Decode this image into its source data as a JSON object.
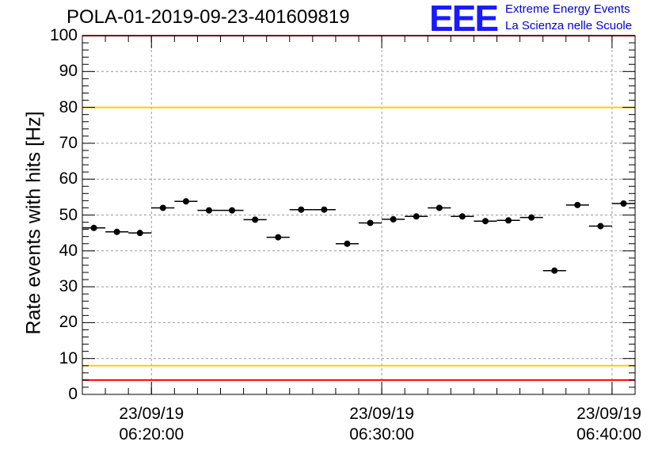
{
  "chart_data": {
    "type": "scatter",
    "title": "POLA-01-2019-09-23-401609819",
    "ylabel": "Rate events with hits [Hz]",
    "xlabel": "",
    "ylim": [
      0,
      100
    ],
    "ytick_labels": [
      "0",
      "10",
      "20",
      "30",
      "40",
      "50",
      "60",
      "70",
      "80",
      "90",
      "100"
    ],
    "xtick_labels": [
      {
        "date": "23/09/19",
        "time": "06:20:00"
      },
      {
        "date": "23/09/19",
        "time": "06:30:00"
      },
      {
        "date": "23/09/19",
        "time": "06:40:00"
      }
    ],
    "xlim": [
      "06:17:00",
      "06:41:00"
    ],
    "grid": true,
    "series": [
      {
        "x": [
          "06:17:30",
          "06:18:30",
          "06:19:30",
          "06:20:30",
          "06:21:30",
          "06:22:30",
          "06:23:30",
          "06:24:30",
          "06:25:30",
          "06:26:30",
          "06:27:30",
          "06:28:30",
          "06:29:30",
          "06:30:30",
          "06:31:30",
          "06:32:30",
          "06:33:30",
          "06:34:30",
          "06:35:30",
          "06:36:30",
          "06:37:30",
          "06:38:30",
          "06:39:30",
          "06:40:30"
        ],
        "values": [
          46.4,
          45.3,
          45.0,
          52.0,
          53.8,
          51.3,
          51.3,
          48.7,
          43.8,
          51.5,
          51.5,
          42.0,
          47.8,
          48.8,
          49.6,
          52.0,
          49.6,
          48.3,
          48.5,
          49.3,
          34.5,
          52.8,
          46.9,
          53.2
        ],
        "color": "#000000"
      }
    ],
    "reference_lines": [
      {
        "y": 100,
        "color": "#ff0000"
      },
      {
        "y": 80,
        "color": "#ffcc00"
      },
      {
        "y": 8,
        "color": "#ffcc00"
      },
      {
        "y": 4,
        "color": "#ff0000"
      }
    ]
  },
  "logo": {
    "text": "EEE",
    "line1": "Extreme Energy Events",
    "line2": "La Scienza nelle Scuole",
    "color": "#1a1aff"
  }
}
